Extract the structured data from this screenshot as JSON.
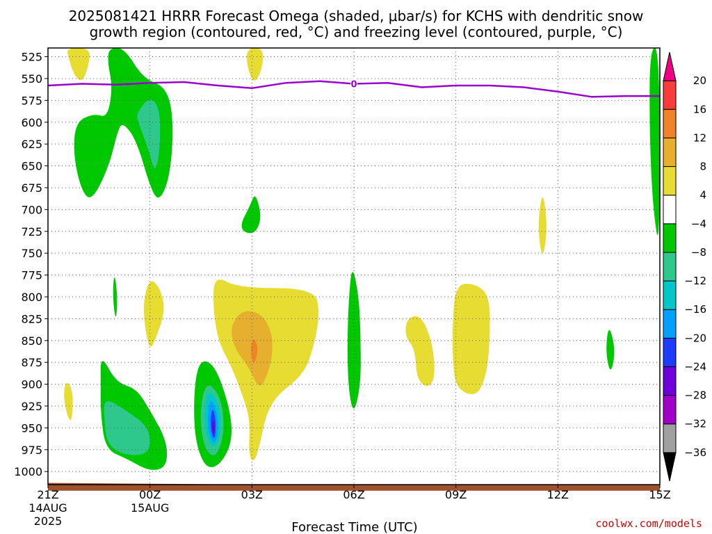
{
  "title_line1": "2025081421 HRRR Forecast Omega (shaded, μbar/s) for KCHS with dendritic snow",
  "title_line2": "growth region (contoured, red, °C) and freezing level (contoured, purple, °C)",
  "xlabel": "Forecast Time (UTC)",
  "credit": "coolwx.com/models",
  "chart_data": {
    "type": "heatmap",
    "x_ticks": [
      {
        "hour": 0,
        "label": "21Z",
        "sub1": "14AUG",
        "sub2": "2025"
      },
      {
        "hour": 3,
        "label": "00Z",
        "sub1": "15AUG",
        "sub2": ""
      },
      {
        "hour": 6,
        "label": "03Z",
        "sub1": "",
        "sub2": ""
      },
      {
        "hour": 9,
        "label": "06Z",
        "sub1": "",
        "sub2": ""
      },
      {
        "hour": 12,
        "label": "09Z",
        "sub1": "",
        "sub2": ""
      },
      {
        "hour": 15,
        "label": "12Z",
        "sub1": "",
        "sub2": ""
      },
      {
        "hour": 18,
        "label": "15Z",
        "sub1": "",
        "sub2": ""
      }
    ],
    "xlim": [
      0,
      18
    ],
    "y_ticks": [
      525,
      550,
      575,
      600,
      625,
      650,
      675,
      700,
      725,
      750,
      775,
      800,
      825,
      850,
      875,
      900,
      925,
      950,
      975,
      1000
    ],
    "ylim": [
      1015,
      515
    ],
    "grid": true,
    "colorbar": {
      "levels": [
        -36,
        -32,
        -28,
        -24,
        -20,
        -16,
        -12,
        -8,
        -4,
        4,
        8,
        12,
        16,
        20
      ],
      "bins": [
        {
          "low": -40,
          "high": -36,
          "color": "#000000"
        },
        {
          "low": -36,
          "high": -32,
          "color": "#a0a0a0"
        },
        {
          "low": -32,
          "high": -28,
          "color": "#a000c8"
        },
        {
          "low": -28,
          "high": -24,
          "color": "#6e00dc"
        },
        {
          "low": -24,
          "high": -20,
          "color": "#1e3cff"
        },
        {
          "low": -20,
          "high": -16,
          "color": "#00a0ff"
        },
        {
          "low": -16,
          "high": -12,
          "color": "#00c8c8"
        },
        {
          "low": -12,
          "high": -8,
          "color": "#2ec88c"
        },
        {
          "low": -8,
          "high": -4,
          "color": "#00c800"
        },
        {
          "low": -4,
          "high": 4,
          "color": "#ffffff"
        },
        {
          "low": 4,
          "high": 8,
          "color": "#e6dc32"
        },
        {
          "low": 8,
          "high": 12,
          "color": "#e6af2d"
        },
        {
          "low": 12,
          "high": 16,
          "color": "#f08228"
        },
        {
          "low": 16,
          "high": 20,
          "color": "#fa3c3c"
        },
        {
          "low": 20,
          "high": 24,
          "color": "#f00082"
        }
      ]
    },
    "freezing_level": {
      "color": "#9900cc",
      "label": "0",
      "label_hour": 9.0,
      "points": [
        [
          0,
          558
        ],
        [
          1,
          556
        ],
        [
          2,
          557
        ],
        [
          3,
          555
        ],
        [
          4,
          554
        ],
        [
          5,
          558
        ],
        [
          6,
          561
        ],
        [
          7,
          555
        ],
        [
          8,
          553
        ],
        [
          9,
          556
        ],
        [
          10,
          555
        ],
        [
          11,
          560
        ],
        [
          12,
          558
        ],
        [
          13,
          558
        ],
        [
          14,
          560
        ],
        [
          15,
          565
        ],
        [
          16,
          571
        ],
        [
          17,
          570
        ],
        [
          18,
          570
        ]
      ]
    },
    "blobs": [
      {
        "color": "#e6dc32",
        "points": [
          [
            0.55,
            515
          ],
          [
            1.25,
            515
          ],
          [
            1.2,
            535
          ],
          [
            1.0,
            555
          ],
          [
            0.75,
            545
          ],
          [
            0.6,
            525
          ]
        ]
      },
      {
        "color": "#e6dc32",
        "points": [
          [
            5.85,
            515
          ],
          [
            6.35,
            515
          ],
          [
            6.3,
            540
          ],
          [
            6.05,
            557
          ],
          [
            5.85,
            535
          ]
        ]
      },
      {
        "color": "#00c800",
        "points": [
          [
            1.8,
            515
          ],
          [
            2.25,
            515
          ],
          [
            2.8,
            550
          ],
          [
            3.5,
            560
          ],
          [
            3.7,
            600
          ],
          [
            3.6,
            660
          ],
          [
            3.3,
            690
          ],
          [
            3.05,
            680
          ],
          [
            2.6,
            620
          ],
          [
            2.2,
            600
          ],
          [
            2.05,
            610
          ],
          [
            1.8,
            650
          ],
          [
            1.3,
            690
          ],
          [
            1.0,
            680
          ],
          [
            0.75,
            640
          ],
          [
            0.8,
            600
          ],
          [
            1.35,
            590
          ],
          [
            1.75,
            595
          ],
          [
            1.9,
            560
          ],
          [
            1.75,
            530
          ]
        ]
      },
      {
        "color": "#2ec88c",
        "points": [
          [
            2.6,
            590
          ],
          [
            3.0,
            570
          ],
          [
            3.3,
            585
          ],
          [
            3.3,
            630
          ],
          [
            3.15,
            660
          ],
          [
            2.95,
            630
          ],
          [
            2.65,
            600
          ]
        ]
      },
      {
        "color": "#00c800",
        "points": [
          [
            6.1,
            680
          ],
          [
            6.3,
            710
          ],
          [
            6.05,
            730
          ],
          [
            5.6,
            722
          ],
          [
            5.95,
            695
          ]
        ]
      },
      {
        "color": "#00c800",
        "points": [
          [
            17.7,
            515
          ],
          [
            18.0,
            515
          ],
          [
            18.0,
            750
          ],
          [
            17.8,
            700
          ],
          [
            17.7,
            620
          ]
        ]
      },
      {
        "color": "#e6dc32",
        "points": [
          [
            14.55,
            675
          ],
          [
            14.7,
            720
          ],
          [
            14.55,
            760
          ],
          [
            14.4,
            720
          ]
        ]
      },
      {
        "color": "#00c800",
        "points": [
          [
            1.95,
            770
          ],
          [
            2.05,
            800
          ],
          [
            2.0,
            830
          ],
          [
            1.9,
            800
          ]
        ]
      },
      {
        "color": "#e6dc32",
        "points": [
          [
            3.0,
            778
          ],
          [
            3.3,
            790
          ],
          [
            3.45,
            815
          ],
          [
            3.2,
            845
          ],
          [
            3.0,
            862
          ],
          [
            2.85,
            835
          ],
          [
            2.8,
            805
          ]
        ]
      },
      {
        "color": "#e6dc32",
        "points": [
          [
            4.9,
            775
          ],
          [
            5.6,
            790
          ],
          [
            7.85,
            790
          ],
          [
            8.0,
            820
          ],
          [
            7.8,
            860
          ],
          [
            7.5,
            890
          ],
          [
            6.5,
            920
          ],
          [
            6.2,
            975
          ],
          [
            6.05,
            990
          ],
          [
            5.9,
            980
          ],
          [
            5.95,
            940
          ],
          [
            5.7,
            910
          ],
          [
            5.4,
            880
          ],
          [
            5.0,
            850
          ],
          [
            4.85,
            810
          ]
        ]
      },
      {
        "color": "#e6af2d",
        "points": [
          [
            5.7,
            815
          ],
          [
            6.25,
            818
          ],
          [
            6.6,
            840
          ],
          [
            6.6,
            870
          ],
          [
            6.4,
            895
          ],
          [
            6.2,
            905
          ],
          [
            5.9,
            880
          ],
          [
            5.5,
            860
          ],
          [
            5.35,
            835
          ]
        ]
      },
      {
        "color": "#f08228",
        "points": [
          [
            6.05,
            845
          ],
          [
            6.2,
            860
          ],
          [
            6.05,
            880
          ],
          [
            5.95,
            860
          ]
        ]
      },
      {
        "color": "#00c800",
        "points": [
          [
            8.95,
            762
          ],
          [
            9.15,
            800
          ],
          [
            9.2,
            850
          ],
          [
            9.2,
            900
          ],
          [
            9.0,
            935
          ],
          [
            8.85,
            910
          ],
          [
            8.8,
            860
          ],
          [
            8.85,
            800
          ]
        ]
      },
      {
        "color": "#e6dc32",
        "points": [
          [
            10.55,
            825
          ],
          [
            10.95,
            820
          ],
          [
            11.3,
            850
          ],
          [
            11.4,
            890
          ],
          [
            11.2,
            905
          ],
          [
            10.85,
            895
          ],
          [
            10.8,
            860
          ],
          [
            10.5,
            845
          ]
        ]
      },
      {
        "color": "#e6dc32",
        "points": [
          [
            12.0,
            785
          ],
          [
            12.6,
            785
          ],
          [
            13.0,
            800
          ],
          [
            13.0,
            850
          ],
          [
            12.9,
            890
          ],
          [
            12.6,
            915
          ],
          [
            12.0,
            905
          ],
          [
            11.9,
            870
          ],
          [
            11.9,
            830
          ]
        ]
      },
      {
        "color": "#00c800",
        "points": [
          [
            16.5,
            830
          ],
          [
            16.7,
            862
          ],
          [
            16.55,
            890
          ],
          [
            16.4,
            862
          ]
        ]
      },
      {
        "color": "#e6dc32",
        "points": [
          [
            0.55,
            895
          ],
          [
            0.75,
            910
          ],
          [
            0.7,
            945
          ],
          [
            0.55,
            935
          ],
          [
            0.45,
            910
          ]
        ]
      },
      {
        "color": "#00c800",
        "points": [
          [
            1.55,
            865
          ],
          [
            2.0,
            898
          ],
          [
            2.6,
            905
          ],
          [
            3.0,
            930
          ],
          [
            3.5,
            965
          ],
          [
            3.5,
            995
          ],
          [
            3.0,
            1000
          ],
          [
            2.3,
            985
          ],
          [
            1.7,
            975
          ],
          [
            1.55,
            935
          ],
          [
            1.55,
            900
          ]
        ]
      },
      {
        "color": "#2ec88c",
        "points": [
          [
            1.65,
            915
          ],
          [
            2.3,
            930
          ],
          [
            3.0,
            950
          ],
          [
            3.0,
            980
          ],
          [
            2.3,
            982
          ],
          [
            1.75,
            970
          ],
          [
            1.65,
            940
          ]
        ]
      },
      {
        "color": "#00c800",
        "points": [
          [
            4.5,
            870
          ],
          [
            4.95,
            880
          ],
          [
            5.4,
            935
          ],
          [
            5.4,
            970
          ],
          [
            5.0,
            995
          ],
          [
            4.6,
            995
          ],
          [
            4.3,
            960
          ],
          [
            4.3,
            900
          ]
        ]
      },
      {
        "color": "#2ec88c",
        "points": [
          [
            4.65,
            895
          ],
          [
            5.1,
            915
          ],
          [
            5.2,
            955
          ],
          [
            4.95,
            985
          ],
          [
            4.6,
            975
          ],
          [
            4.45,
            935
          ]
        ]
      },
      {
        "color": "#00c8c8",
        "points": [
          [
            4.75,
            905
          ],
          [
            5.05,
            925
          ],
          [
            5.1,
            955
          ],
          [
            4.9,
            975
          ],
          [
            4.65,
            960
          ],
          [
            4.6,
            925
          ]
        ]
      },
      {
        "color": "#00a0ff",
        "points": [
          [
            4.8,
            915
          ],
          [
            5.0,
            935
          ],
          [
            5.0,
            960
          ],
          [
            4.85,
            970
          ],
          [
            4.7,
            950
          ],
          [
            4.7,
            930
          ]
        ]
      },
      {
        "color": "#1e3cff",
        "points": [
          [
            4.85,
            925
          ],
          [
            4.95,
            945
          ],
          [
            4.9,
            965
          ],
          [
            4.8,
            955
          ],
          [
            4.78,
            940
          ]
        ]
      },
      {
        "color": "#6e00dc",
        "points": [
          [
            4.87,
            938
          ],
          [
            4.92,
            950
          ],
          [
            4.87,
            960
          ],
          [
            4.82,
            950
          ]
        ]
      }
    ],
    "terrain": {
      "color": "#a0522d",
      "points": [
        [
          0,
          1013
        ],
        [
          3,
          1014
        ],
        [
          6,
          1015
        ],
        [
          14,
          1015
        ],
        [
          18,
          1015
        ]
      ],
      "bottom": 1022
    }
  }
}
